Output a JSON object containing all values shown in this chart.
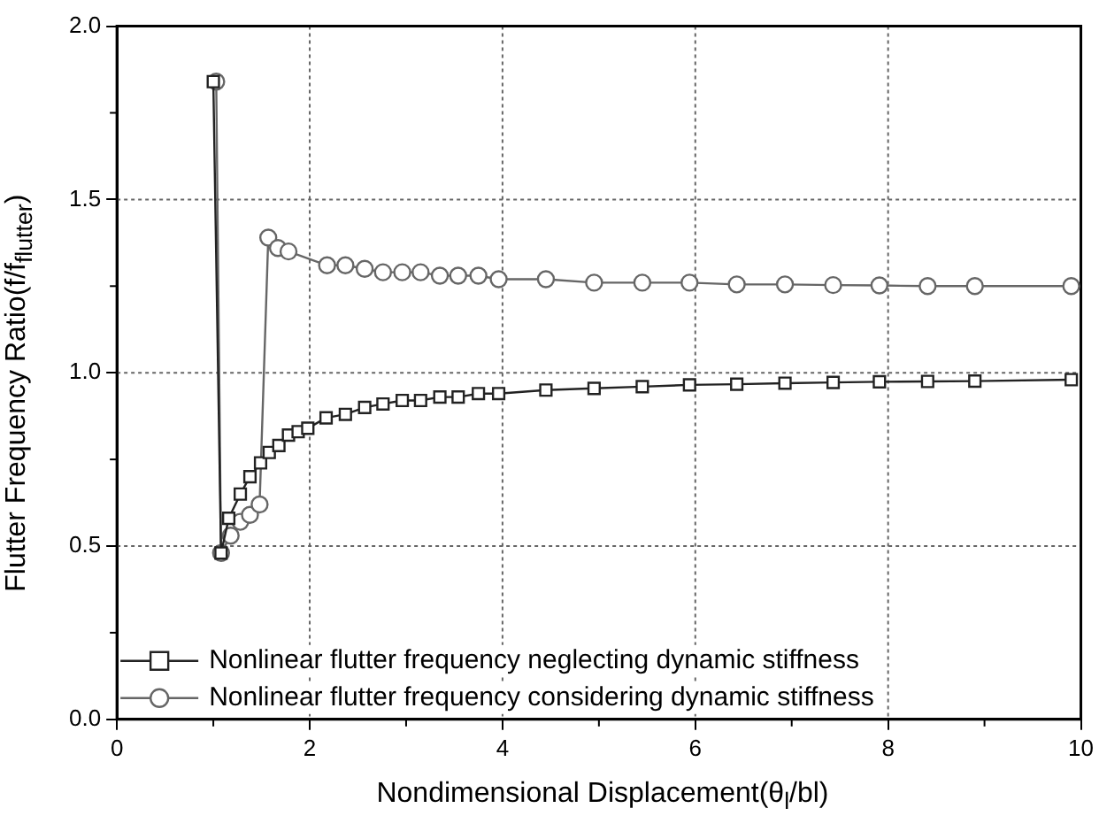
{
  "chart_data": {
    "type": "line",
    "xlabel": "Nondimensional Displacement(θ$_{l}$/bl)",
    "ylabel": "Flutter Frequency Ratio(f/f$_{flutter}$)",
    "xlim": [
      0,
      10
    ],
    "xticks": [
      0,
      2,
      4,
      6,
      8,
      10
    ],
    "ylim": [
      0,
      2
    ],
    "yticks": [
      {
        "value": 0,
        "label": "0.0"
      },
      {
        "value": 0.5,
        "label": "0.5"
      },
      {
        "value": 1,
        "label": "1.0"
      },
      {
        "value": 1.5,
        "label": "1.5"
      },
      {
        "value": 2,
        "label": "2.0"
      }
    ],
    "grid": true,
    "legend": "bottom left",
    "line_style": "solid",
    "series": [
      {
        "name": "Nonlinear flutter frequency neglecting dynamic stiffness",
        "color": "#222222",
        "marker": "square",
        "x": [
          1.0,
          1.08,
          1.16,
          1.28,
          1.38,
          1.49,
          1.58,
          1.68,
          1.78,
          1.88,
          1.98,
          2.17,
          2.37,
          2.57,
          2.76,
          2.96,
          3.15,
          3.35,
          3.54,
          3.75,
          3.96,
          4.45,
          4.95,
          5.45,
          5.94,
          6.43,
          6.93,
          7.43,
          7.91,
          8.41,
          8.9,
          9.9
        ],
        "values": [
          1.84,
          0.48,
          0.58,
          0.65,
          0.7,
          0.74,
          0.77,
          0.79,
          0.82,
          0.83,
          0.84,
          0.87,
          0.88,
          0.9,
          0.91,
          0.92,
          0.92,
          0.93,
          0.93,
          0.94,
          0.94,
          0.95,
          0.955,
          0.96,
          0.965,
          0.967,
          0.97,
          0.972,
          0.974,
          0.975,
          0.976,
          0.98
        ]
      },
      {
        "name": "Nonlinear flutter frequency considering dynamic stiffness",
        "color": "#666666",
        "marker": "circle",
        "x": [
          1.03,
          1.08,
          1.18,
          1.28,
          1.38,
          1.48,
          1.57,
          1.67,
          1.78,
          2.18,
          2.37,
          2.57,
          2.76,
          2.96,
          3.15,
          3.35,
          3.54,
          3.75,
          3.96,
          4.45,
          4.95,
          5.45,
          5.94,
          6.43,
          6.93,
          7.43,
          7.91,
          8.41,
          8.9,
          9.9
        ],
        "values": [
          1.84,
          0.48,
          0.53,
          0.57,
          0.59,
          0.62,
          1.39,
          1.36,
          1.35,
          1.31,
          1.31,
          1.3,
          1.29,
          1.29,
          1.29,
          1.28,
          1.28,
          1.28,
          1.27,
          1.27,
          1.26,
          1.26,
          1.26,
          1.255,
          1.255,
          1.253,
          1.252,
          1.25,
          1.25,
          1.25
        ]
      }
    ]
  }
}
